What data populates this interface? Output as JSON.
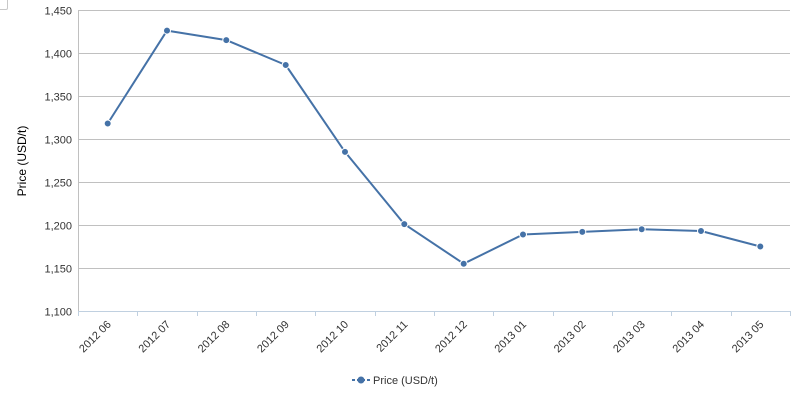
{
  "colors": {
    "series": "#4572a7",
    "grid": "#c0c0c0",
    "axis": "#c0d0e0",
    "text": "#333333"
  },
  "chart_data": {
    "type": "line",
    "title": "",
    "xlabel": "",
    "ylabel": "Price (USD/t)",
    "categories": [
      "2012 06",
      "2012 07",
      "2012 08",
      "2012 09",
      "2012 10",
      "2012 11",
      "2012 12",
      "2013 01",
      "2013 02",
      "2013 03",
      "2013 04",
      "2013 05"
    ],
    "series": [
      {
        "name": "Price (USD/t)",
        "values": [
          1318,
          1426,
          1415,
          1386,
          1285,
          1201,
          1155,
          1189,
          1192,
          1195,
          1193,
          1175
        ]
      }
    ],
    "ylim": [
      1100,
      1450
    ],
    "yticks": [
      1100,
      1150,
      1200,
      1250,
      1300,
      1350,
      1400,
      1450
    ],
    "ytick_labels": [
      "1,100",
      "1,150",
      "1,200",
      "1,250",
      "1,300",
      "1,350",
      "1,400",
      "1,450"
    ],
    "grid": true,
    "legend_position": "bottom-center"
  }
}
